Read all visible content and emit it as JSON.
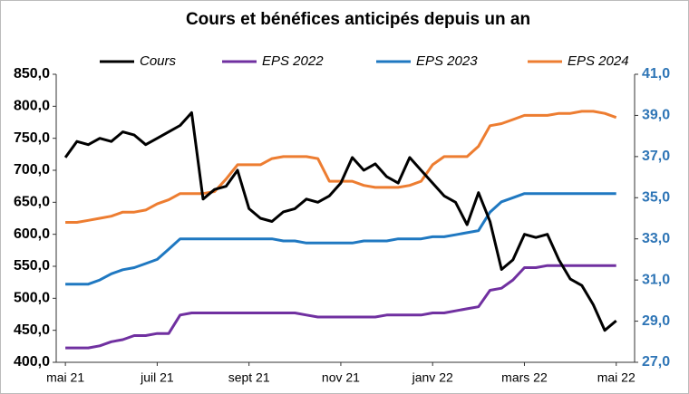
{
  "chart_data": {
    "type": "line",
    "title": "Cours et bénéfices anticipés depuis un an",
    "x": [
      0,
      0.25,
      0.5,
      0.75,
      1,
      1.25,
      1.5,
      1.75,
      2,
      2.25,
      2.5,
      2.75,
      3,
      3.25,
      3.5,
      3.75,
      4,
      4.25,
      4.5,
      4.75,
      5,
      5.25,
      5.5,
      5.75,
      6,
      6.25,
      6.5,
      6.75,
      7,
      7.25,
      7.5,
      7.75,
      8,
      8.25,
      8.5,
      8.75,
      9,
      9.25,
      9.5,
      9.75,
      10,
      10.25,
      10.5,
      10.75,
      11,
      11.25,
      11.5,
      11.75,
      12
    ],
    "xlim": [
      -0.2,
      12.4
    ],
    "xticks": [
      {
        "value": 0,
        "label": "mai 21"
      },
      {
        "value": 2,
        "label": "juil 21"
      },
      {
        "value": 4,
        "label": "sept 21"
      },
      {
        "value": 6,
        "label": "nov 21"
      },
      {
        "value": 8,
        "label": "janv 22"
      },
      {
        "value": 10,
        "label": "mars 22"
      },
      {
        "value": 12,
        "label": "mai 22"
      }
    ],
    "ylim": [
      400,
      850
    ],
    "yticks": [
      {
        "value": 400,
        "label": "400,0"
      },
      {
        "value": 450,
        "label": "450,0"
      },
      {
        "value": 500,
        "label": "500,0"
      },
      {
        "value": 550,
        "label": "550,0"
      },
      {
        "value": 600,
        "label": "600,0"
      },
      {
        "value": 650,
        "label": "650,0"
      },
      {
        "value": 700,
        "label": "700,0"
      },
      {
        "value": 750,
        "label": "750,0"
      },
      {
        "value": 800,
        "label": "800,0"
      },
      {
        "value": 850,
        "label": "850,0"
      }
    ],
    "y2lim": [
      27,
      41
    ],
    "y2ticks": [
      {
        "value": 27,
        "label": "27,0"
      },
      {
        "value": 29,
        "label": "29,0"
      },
      {
        "value": 31,
        "label": "31,0"
      },
      {
        "value": 33,
        "label": "33,0"
      },
      {
        "value": 35,
        "label": "35,0"
      },
      {
        "value": 37,
        "label": "37,0"
      },
      {
        "value": 39,
        "label": "39,0"
      },
      {
        "value": 41,
        "label": "41,0"
      }
    ],
    "y2color": "#2e75b6",
    "grid": false,
    "legend": "top",
    "series": [
      {
        "name": "Cours",
        "color": "#000000",
        "values": [
          720,
          745,
          740,
          750,
          745,
          760,
          755,
          740,
          750,
          760,
          770,
          790,
          655,
          670,
          675,
          700,
          640,
          625,
          620,
          635,
          640,
          655,
          650,
          660,
          680,
          720,
          700,
          710,
          690,
          680,
          720,
          700,
          680,
          660,
          650,
          615,
          665,
          620,
          545,
          560,
          600,
          595,
          600,
          560,
          530,
          520,
          490,
          450,
          465
        ]
      },
      {
        "name": "EPS 2022",
        "color": "#7030a0",
        "axis": "y2",
        "values": [
          27.7,
          27.7,
          27.7,
          27.8,
          28.0,
          28.1,
          28.3,
          28.3,
          28.4,
          28.4,
          29.3,
          29.4,
          29.4,
          29.4,
          29.4,
          29.4,
          29.4,
          29.4,
          29.4,
          29.4,
          29.4,
          29.3,
          29.2,
          29.2,
          29.2,
          29.2,
          29.2,
          29.2,
          29.3,
          29.3,
          29.3,
          29.3,
          29.4,
          29.4,
          29.5,
          29.6,
          29.7,
          30.5,
          30.6,
          31.0,
          31.6,
          31.6,
          31.7,
          31.7,
          31.7,
          31.7,
          31.7,
          31.7,
          31.7
        ]
      },
      {
        "name": "EPS 2023",
        "color": "#1f78c1",
        "axis": "y2",
        "values": [
          30.8,
          30.8,
          30.8,
          31.0,
          31.3,
          31.5,
          31.6,
          31.8,
          32.0,
          32.5,
          33.0,
          33.0,
          33.0,
          33.0,
          33.0,
          33.0,
          33.0,
          33.0,
          33.0,
          32.9,
          32.9,
          32.8,
          32.8,
          32.8,
          32.8,
          32.8,
          32.9,
          32.9,
          32.9,
          33.0,
          33.0,
          33.0,
          33.1,
          33.1,
          33.2,
          33.3,
          33.4,
          34.3,
          34.8,
          35.0,
          35.2,
          35.2,
          35.2,
          35.2,
          35.2,
          35.2,
          35.2,
          35.2,
          35.2
        ]
      },
      {
        "name": "EPS 2024",
        "color": "#ed7d31",
        "axis": "y2",
        "values": [
          33.8,
          33.8,
          33.9,
          34.0,
          34.1,
          34.3,
          34.3,
          34.4,
          34.7,
          34.9,
          35.2,
          35.2,
          35.2,
          35.3,
          35.9,
          36.6,
          36.6,
          36.6,
          36.9,
          37.0,
          37.0,
          37.0,
          36.9,
          35.8,
          35.8,
          35.8,
          35.6,
          35.5,
          35.5,
          35.5,
          35.6,
          35.8,
          36.6,
          37.0,
          37.0,
          37.0,
          37.5,
          38.5,
          38.6,
          38.8,
          39.0,
          39.0,
          39.0,
          39.1,
          39.1,
          39.2,
          39.2,
          39.1,
          38.9
        ]
      }
    ]
  }
}
